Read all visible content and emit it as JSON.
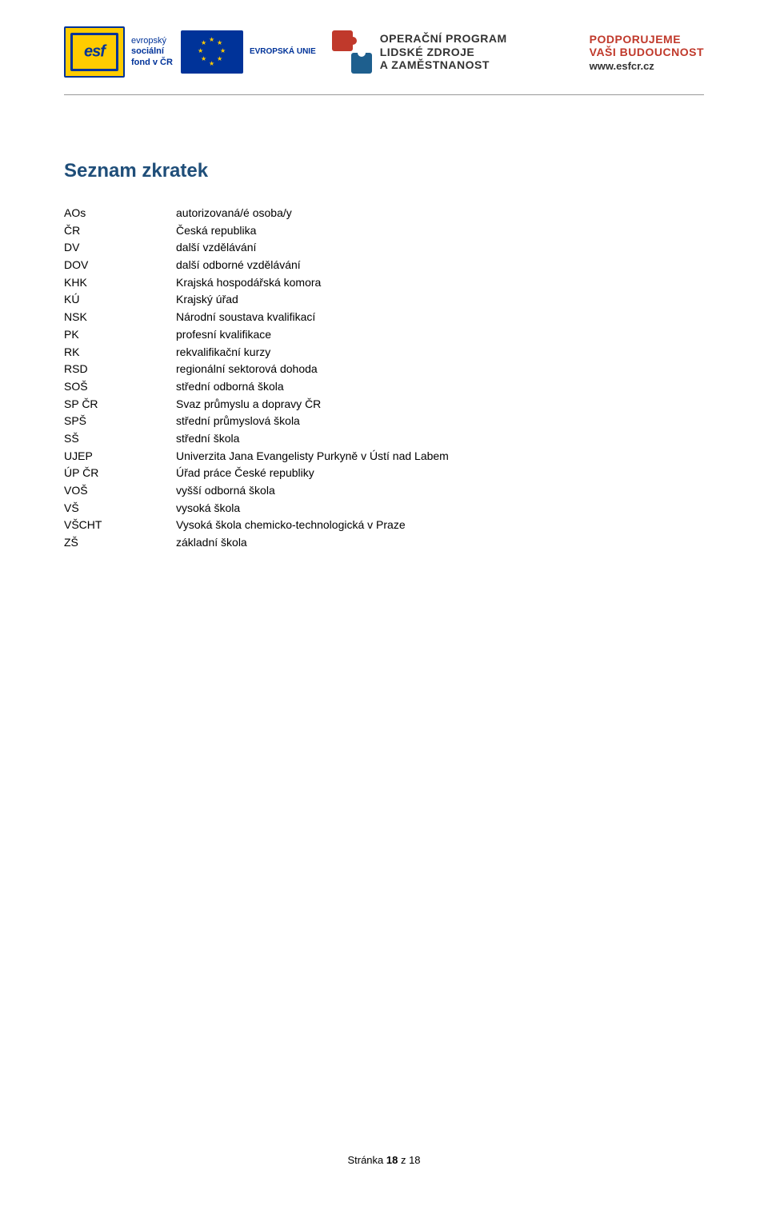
{
  "banner": {
    "esf": {
      "flag_text": "esf",
      "line1": "evropský",
      "line2": "sociální",
      "line3": "fond v ČR"
    },
    "eu": {
      "label": "EVROPSKÁ UNIE"
    },
    "op": {
      "line1": "OPERAČNÍ PROGRAM",
      "line2": "LIDSKÉ ZDROJE",
      "line3": "A ZAMĚSTNANOST"
    },
    "support": {
      "line1": "PODPORUJEME",
      "line2": "VAŠI BUDOUCNOST",
      "url": "www.esfcr.cz"
    }
  },
  "title": "Seznam zkratek",
  "rows": [
    {
      "k": "AOs",
      "v": "autorizovaná/é osoba/y"
    },
    {
      "k": "ČR",
      "v": "Česká republika"
    },
    {
      "k": "DV",
      "v": "další vzdělávání"
    },
    {
      "k": "DOV",
      "v": "další odborné vzdělávání"
    },
    {
      "k": "KHK",
      "v": "Krajská hospodářská komora"
    },
    {
      "k": "KÚ",
      "v": "Krajský úřad"
    },
    {
      "k": "NSK",
      "v": "Národní soustava kvalifikací"
    },
    {
      "k": "PK",
      "v": "profesní kvalifikace"
    },
    {
      "k": "RK",
      "v": "rekvalifikační kurzy"
    },
    {
      "k": "RSD",
      "v": "regionální sektorová dohoda"
    },
    {
      "k": "SOŠ",
      "v": "střední odborná škola"
    },
    {
      "k": "SP ČR",
      "v": "Svaz průmyslu a dopravy ČR"
    },
    {
      "k": "SPŠ",
      "v": "střední průmyslová škola"
    },
    {
      "k": "SŠ",
      "v": "střední škola"
    },
    {
      "k": "UJEP",
      "v": "Univerzita Jana Evangelisty Purkyně v Ústí nad Labem"
    },
    {
      "k": "ÚP ČR",
      "v": "Úřad práce České republiky"
    },
    {
      "k": "VOŠ",
      "v": "vyšší odborná škola"
    },
    {
      "k": "VŠ",
      "v": "vysoká škola"
    },
    {
      "k": "VŠCHT",
      "v": "Vysoká škola chemicko-technologická v Praze"
    },
    {
      "k": "ZŠ",
      "v": "základní škola"
    }
  ],
  "footer": {
    "label": "Stránka ",
    "page": "18",
    "of": " z ",
    "total": "18"
  }
}
